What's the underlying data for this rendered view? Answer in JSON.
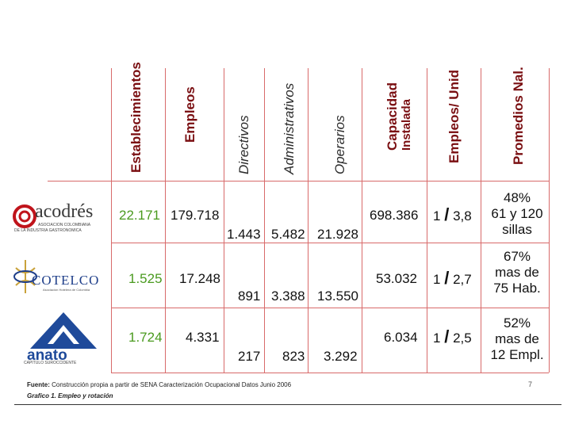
{
  "headers": {
    "establecimientos": "Establecimientos",
    "empleos": "Empleos",
    "directivos": "Directivos",
    "administrativos": "Administrativos",
    "operarios": "Operarios",
    "capacidad_1": "Capacidad",
    "capacidad_2": "Instalada",
    "empleos_unid": "Empleos/ Unid",
    "promedios": "Promedios Nal."
  },
  "rows": [
    {
      "logo": {
        "name": "acodrés",
        "tagline_1": "ASOCIACION COLOMBIANA",
        "tagline_2": "DE LA INDUSTRIA GASTRONOMICA"
      },
      "establecimientos": "22.171",
      "empleos": "179.718",
      "directivos": "1.443",
      "administrativos": "5.482",
      "operarios": "21.928",
      "capacidad": "698.386",
      "ratio_left": "1",
      "ratio_right": "3,8",
      "promedio": [
        "48%",
        "61 y 120",
        "sillas"
      ]
    },
    {
      "logo": {
        "name": "COTELCO",
        "tagline_1": "Asociación Hotelera de Colombia",
        "tagline_2": ""
      },
      "establecimientos": "1.525",
      "empleos": "17.248",
      "directivos": "891",
      "administrativos": "3.388",
      "operarios": "13.550",
      "capacidad": "53.032",
      "ratio_left": "1",
      "ratio_right": "2,7",
      "promedio": [
        "67%",
        "mas de",
        "75 Hab."
      ]
    },
    {
      "logo": {
        "name": "anato",
        "tagline_1": "CAPITULO SUROCCIDENTE",
        "tagline_2": ""
      },
      "establecimientos": "1.724",
      "empleos": "4.331",
      "directivos": "217",
      "administrativos": "823",
      "operarios": "3.292",
      "capacidad": "6.034",
      "ratio_left": "1",
      "ratio_right": "2,5",
      "promedio": [
        "52%",
        "mas de",
        "12 Empl."
      ]
    }
  ],
  "ratio_separator": "/",
  "footer": {
    "source_label": "Fuente:",
    "source_text": " Construcción propia a partir de SENA Caracterización Ocupacional  Datos Junio 2006",
    "caption": "Grafico 1. Empleo y rotación"
  },
  "page_number": "7",
  "colors": {
    "header": "#7a0f12",
    "grid": "#d86a6a",
    "establecimientos": "#4a9a1f"
  }
}
